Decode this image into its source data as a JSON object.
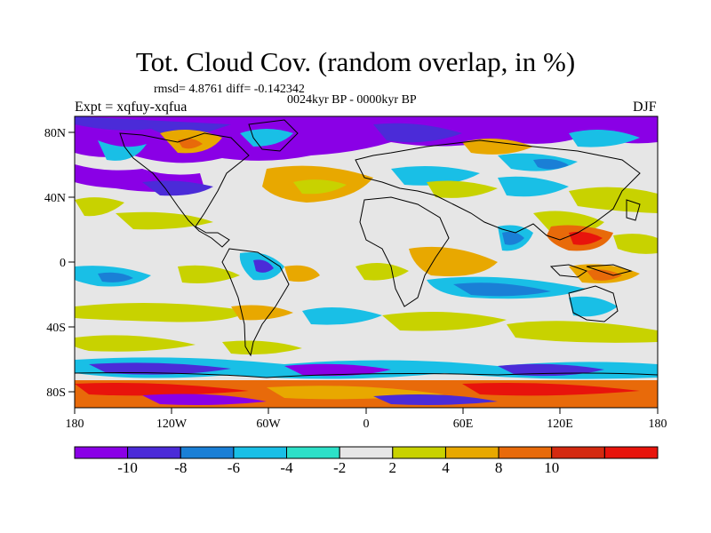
{
  "figure": {
    "title": "Tot. Cloud Cov. (random overlap, in %)",
    "stats": "rmsd= 4.8761 diff= -0.142342",
    "period": "0024kyr BP - 0000kyr BP",
    "expt": "Expt = xqfuy-xqfua",
    "season": "DJF"
  },
  "axes": {
    "x_ticks": [
      "180",
      "120W",
      "60W",
      "0",
      "60E",
      "120E",
      "180"
    ],
    "y_ticks": [
      "80N",
      "40N",
      "0",
      "40S",
      "80S"
    ]
  },
  "colorbar": {
    "labels": [
      "-10",
      "-8",
      "-6",
      "-4",
      "-2",
      "2",
      "4",
      "8",
      "10"
    ],
    "colors": [
      "#8a00e6",
      "#4b2bd8",
      "#1a7fd6",
      "#19bfe6",
      "#2de0c8",
      "#e6e6e6",
      "#c8d200",
      "#e8a800",
      "#e86a0a",
      "#d42a10",
      "#e8140c"
    ]
  },
  "map_colors": {
    "land_outline": "#000000",
    "neutral": "#e6e6e6"
  }
}
